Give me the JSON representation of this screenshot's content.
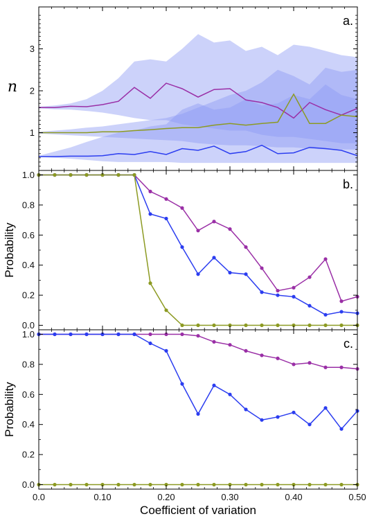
{
  "xlabel": "Coefficient of variation",
  "xticks": [
    "0.0",
    "0.10",
    "0.20",
    "0.30",
    "0.40",
    "0.50"
  ],
  "colors": {
    "purple": "#9a2fa6",
    "blue": "#2b3df0",
    "olive": "#8c9a22",
    "band": "#8f9cf4"
  },
  "chart_data": [
    {
      "type": "area",
      "panel_label": "a.",
      "ylabel": "n",
      "xlim": [
        0.0,
        0.5
      ],
      "ylim": [
        0.1,
        4.0
      ],
      "yticks": [
        "1",
        "2",
        "3"
      ],
      "x": [
        0.0,
        0.025,
        0.05,
        0.075,
        0.1,
        0.125,
        0.15,
        0.175,
        0.2,
        0.225,
        0.25,
        0.275,
        0.3,
        0.325,
        0.35,
        0.375,
        0.4,
        0.425,
        0.45,
        0.475,
        0.5
      ],
      "series": [
        {
          "color": "purple",
          "values": [
            1.6,
            1.6,
            1.63,
            1.62,
            1.67,
            1.75,
            2.08,
            1.82,
            2.18,
            2.05,
            1.85,
            2.03,
            2.05,
            1.78,
            1.72,
            1.6,
            1.35,
            1.72,
            1.55,
            1.42,
            1.58
          ]
        },
        {
          "color": "olive",
          "values": [
            1.0,
            1.0,
            1.0,
            1.0,
            1.02,
            1.02,
            1.05,
            1.07,
            1.1,
            1.12,
            1.12,
            1.18,
            1.22,
            1.18,
            1.22,
            1.25,
            1.92,
            1.22,
            1.22,
            1.42,
            1.38
          ]
        },
        {
          "color": "blue",
          "values": [
            0.43,
            0.43,
            0.44,
            0.44,
            0.45,
            0.5,
            0.48,
            0.55,
            0.48,
            0.62,
            0.58,
            0.68,
            0.5,
            0.55,
            0.7,
            0.5,
            0.52,
            0.65,
            0.62,
            0.58,
            0.45
          ]
        }
      ],
      "bands": [
        {
          "color": "purple",
          "lower": [
            1.58,
            1.56,
            1.55,
            1.52,
            1.48,
            1.42,
            1.35,
            1.3,
            1.3,
            1.2,
            1.15,
            1.1,
            1.05,
            1.05,
            0.95,
            0.9,
            0.9,
            0.85,
            0.8,
            0.75,
            0.75
          ],
          "upper": [
            1.62,
            1.65,
            1.7,
            1.8,
            2.0,
            2.3,
            2.7,
            2.75,
            2.7,
            3.0,
            3.35,
            3.15,
            3.2,
            2.95,
            3.05,
            2.85,
            3.1,
            3.05,
            2.95,
            2.85,
            2.8
          ]
        },
        {
          "color": "olive",
          "lower": [
            0.98,
            0.96,
            0.94,
            0.92,
            0.9,
            0.88,
            0.86,
            0.84,
            0.82,
            0.8,
            0.75,
            0.72,
            0.7,
            0.7,
            0.68,
            0.65,
            0.65,
            0.62,
            0.6,
            0.6,
            0.6
          ],
          "upper": [
            1.02,
            1.05,
            1.08,
            1.12,
            1.15,
            1.2,
            1.25,
            1.3,
            1.35,
            1.45,
            1.6,
            1.75,
            1.9,
            2.0,
            2.2,
            2.5,
            2.35,
            2.15,
            2.55,
            2.45,
            2.5
          ]
        },
        {
          "color": "blue",
          "lower": [
            0.42,
            0.4,
            0.38,
            0.35,
            0.32,
            0.3,
            0.3,
            0.3,
            0.3,
            0.28,
            0.28,
            0.28,
            0.28,
            0.28,
            0.28,
            0.28,
            0.28,
            0.28,
            0.28,
            0.28,
            0.28
          ],
          "upper": [
            0.45,
            0.55,
            0.65,
            0.78,
            0.9,
            1.0,
            1.05,
            1.15,
            1.2,
            1.55,
            1.7,
            1.55,
            1.6,
            1.8,
            1.65,
            1.7,
            1.9,
            1.8,
            2.15,
            1.9,
            1.8
          ]
        }
      ]
    },
    {
      "type": "line",
      "panel_label": "b.",
      "ylabel": "Probability",
      "xlim": [
        0.0,
        0.5
      ],
      "ylim": [
        -0.03,
        1.03
      ],
      "yticks": [
        "0.0",
        "0.2",
        "0.4",
        "0.6",
        "0.8",
        "1.0"
      ],
      "x": [
        0.0,
        0.025,
        0.05,
        0.075,
        0.1,
        0.125,
        0.15,
        0.175,
        0.2,
        0.225,
        0.25,
        0.275,
        0.3,
        0.325,
        0.35,
        0.375,
        0.4,
        0.425,
        0.45,
        0.475,
        0.5
      ],
      "series": [
        {
          "color": "purple",
          "values": [
            1.0,
            1.0,
            1.0,
            1.0,
            1.0,
            1.0,
            1.0,
            0.89,
            0.84,
            0.78,
            0.63,
            0.69,
            0.64,
            0.52,
            0.38,
            0.23,
            0.25,
            0.32,
            0.44,
            0.16,
            0.19
          ]
        },
        {
          "color": "blue",
          "values": [
            1.0,
            1.0,
            1.0,
            1.0,
            1.0,
            1.0,
            1.0,
            0.74,
            0.71,
            0.52,
            0.34,
            0.45,
            0.35,
            0.34,
            0.22,
            0.2,
            0.19,
            0.13,
            0.07,
            0.09,
            0.08
          ]
        },
        {
          "color": "olive",
          "values": [
            1.0,
            1.0,
            1.0,
            1.0,
            1.0,
            1.0,
            1.0,
            0.28,
            0.1,
            0.0,
            0.0,
            0.0,
            0.0,
            0.0,
            0.0,
            0.0,
            0.0,
            0.0,
            0.0,
            0.0,
            0.0
          ]
        }
      ]
    },
    {
      "type": "line",
      "panel_label": "c.",
      "ylabel": "Probability",
      "xlim": [
        0.0,
        0.5
      ],
      "ylim": [
        -0.03,
        1.03
      ],
      "yticks": [
        "0.0",
        "0.2",
        "0.4",
        "0.6",
        "0.8",
        "1.0"
      ],
      "x": [
        0.0,
        0.025,
        0.05,
        0.075,
        0.1,
        0.125,
        0.15,
        0.175,
        0.2,
        0.225,
        0.25,
        0.275,
        0.3,
        0.325,
        0.35,
        0.375,
        0.4,
        0.425,
        0.45,
        0.475,
        0.5
      ],
      "series": [
        {
          "color": "purple",
          "values": [
            1.0,
            1.0,
            1.0,
            1.0,
            1.0,
            1.0,
            1.0,
            1.0,
            1.0,
            1.0,
            0.99,
            0.95,
            0.93,
            0.89,
            0.86,
            0.84,
            0.8,
            0.81,
            0.78,
            0.78,
            0.77
          ]
        },
        {
          "color": "blue",
          "values": [
            1.0,
            1.0,
            1.0,
            1.0,
            1.0,
            1.0,
            1.0,
            0.94,
            0.89,
            0.67,
            0.47,
            0.66,
            0.6,
            0.5,
            0.43,
            0.45,
            0.48,
            0.4,
            0.51,
            0.37,
            0.49
          ]
        },
        {
          "color": "olive",
          "values": [
            0.0,
            0.0,
            0.0,
            0.0,
            0.0,
            0.0,
            0.0,
            0.0,
            0.0,
            0.0,
            0.0,
            0.0,
            0.0,
            0.0,
            0.0,
            0.0,
            0.0,
            0.0,
            0.0,
            0.0,
            0.0
          ]
        }
      ]
    }
  ]
}
